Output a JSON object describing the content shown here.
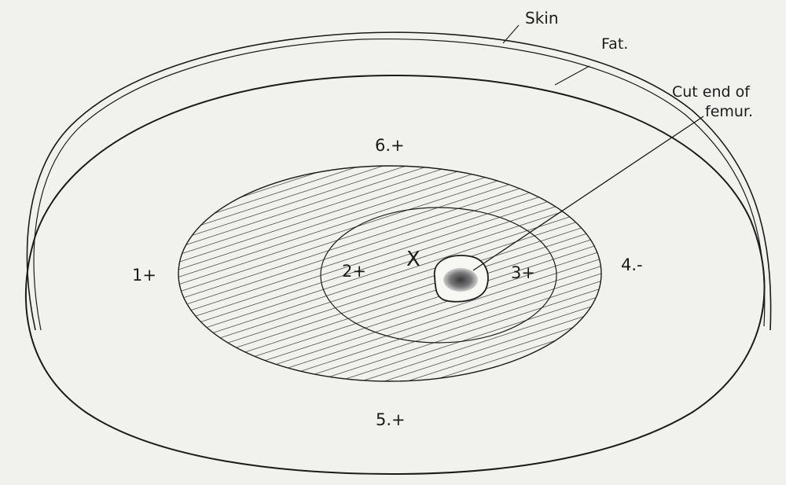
{
  "labels": {
    "skin": "Skin",
    "fat": "Fat.",
    "femur_line1": "Cut end of",
    "femur_line2": "femur.",
    "marker_x": "X",
    "zone_1": "1+",
    "zone_2": "2+",
    "zone_3": "3+",
    "zone_4": "4.-",
    "zone_5": "5.+",
    "zone_6": "6.+"
  },
  "colors": {
    "paper": "#f1f1ed",
    "ink": "#1b1b1b",
    "hatch": "#2a2a2a",
    "bone_marrow": "#6a6a6a"
  }
}
